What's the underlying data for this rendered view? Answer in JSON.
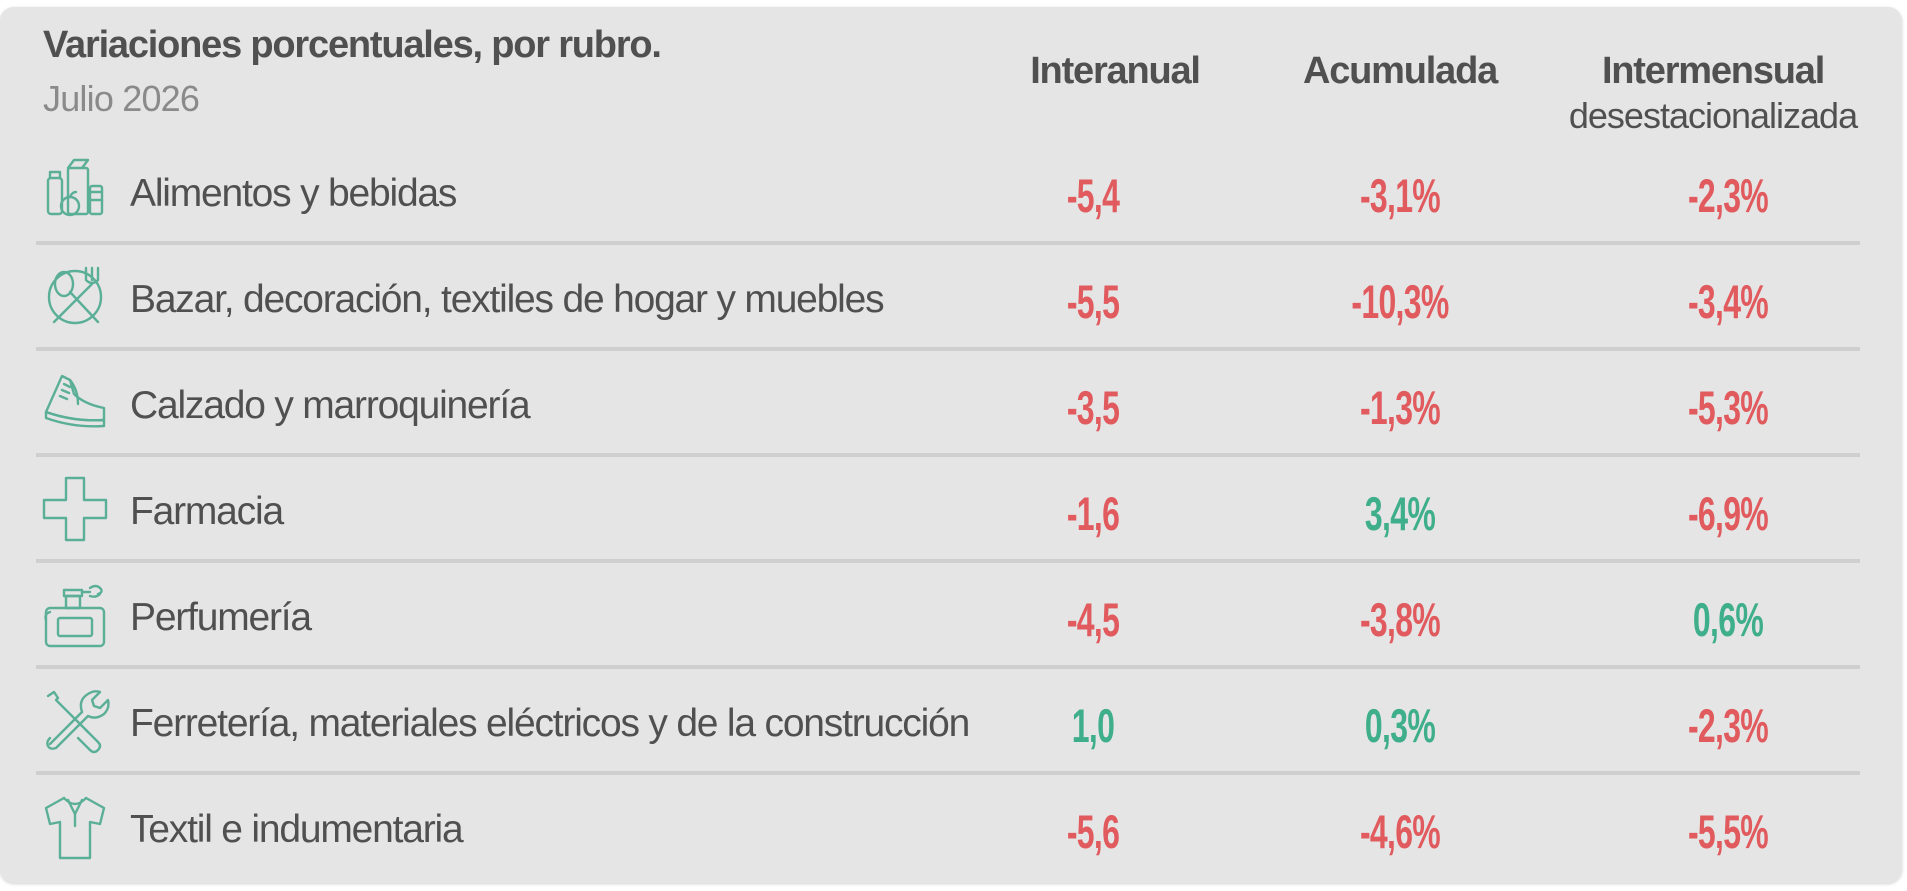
{
  "title": "Variaciones porcentuales, por rubro.",
  "subtitle": "Julio 2026",
  "columns": {
    "interanual": "Interanual",
    "acumulada": "Acumulada",
    "intermensual": "Intermensual",
    "intermensual_sub": "desestacionalizada"
  },
  "colors": {
    "negative": "#e05a5e",
    "positive": "#3fae8a",
    "icon": "#5aaf96",
    "background": "#e5e5e5"
  },
  "rows": [
    {
      "label": "Alimentos y bebidas",
      "icon": "groceries-icon",
      "interanual": "-5,4",
      "acumulada": "-3,1%",
      "intermensual": "-2,3%"
    },
    {
      "label": "Bazar, decoración, textiles de hogar y muebles",
      "icon": "plate-cutlery-icon",
      "interanual": "-5,5",
      "acumulada": "-10,3%",
      "intermensual": "-3,4%"
    },
    {
      "label": "Calzado y marroquinería",
      "icon": "sneaker-icon",
      "interanual": "-3,5",
      "acumulada": "-1,3%",
      "intermensual": "-5,3%"
    },
    {
      "label": "Farmacia",
      "icon": "pharmacy-cross-icon",
      "interanual": "-1,6",
      "acumulada": "3,4%",
      "intermensual": "-6,9%"
    },
    {
      "label": "Perfumería",
      "icon": "perfume-bottle-icon",
      "interanual": "-4,5",
      "acumulada": "-3,8%",
      "intermensual": "0,6%"
    },
    {
      "label": "Ferretería, materiales eléctricos y de la construcción",
      "icon": "wrench-screwdriver-icon",
      "interanual": "1,0",
      "acumulada": "0,3%",
      "intermensual": "-2,3%"
    },
    {
      "label": "Textil e indumentaria",
      "icon": "shirt-icon",
      "interanual": "-5,6",
      "acumulada": "-4,6%",
      "intermensual": "-5,5%"
    }
  ],
  "chart_data": {
    "type": "table",
    "title": "Variaciones porcentuales, por rubro.",
    "subtitle": "Julio 2026",
    "columns": [
      "Interanual",
      "Acumulada",
      "Intermensual desestacionalizada"
    ],
    "categories": [
      "Alimentos y bebidas",
      "Bazar, decoración, textiles de hogar y muebles",
      "Calzado y marroquinería",
      "Farmacia",
      "Perfumería",
      "Ferretería, materiales eléctricos y de la construcción",
      "Textil e indumentaria"
    ],
    "series": [
      {
        "name": "Interanual",
        "values": [
          -5.4,
          -5.5,
          -3.5,
          -1.6,
          -4.5,
          1.0,
          -5.6
        ]
      },
      {
        "name": "Acumulada",
        "values": [
          -3.1,
          -10.3,
          -1.3,
          3.4,
          -3.8,
          0.3,
          -4.6
        ]
      },
      {
        "name": "Intermensual desestacionalizada",
        "values": [
          -2.3,
          -3.4,
          -5.3,
          -6.9,
          0.6,
          -2.3,
          -5.5
        ]
      }
    ]
  }
}
